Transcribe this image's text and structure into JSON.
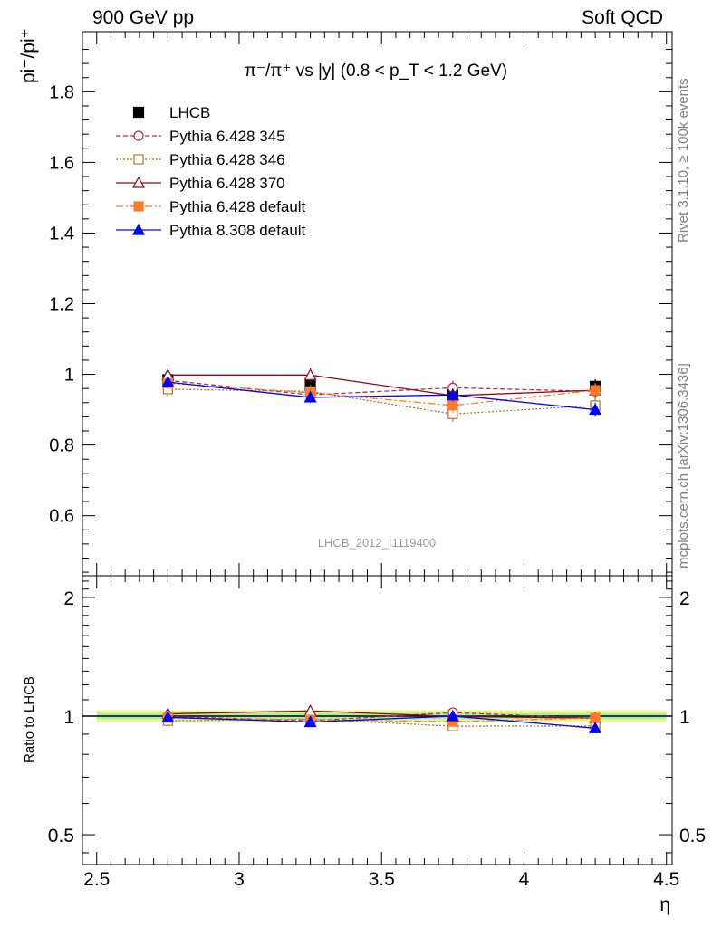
{
  "header": {
    "left": "900 GeV pp",
    "right": "Soft QCD"
  },
  "side_labels": {
    "rivet": "Rivet 3.1.10, ≥ 100k events",
    "source": "mcplots.cern.ch [arXiv:1306.3436]"
  },
  "chart_data": [
    {
      "type": "line",
      "title": "π⁻/π⁺ vs |y| (0.8 < p_T < 1.2 GeV)",
      "ylabel": "pi⁻/pi⁺",
      "xlabel": "η",
      "watermark": "LHCB_2012_I1119400",
      "xlim": [
        2.45,
        4.52
      ],
      "ylim": [
        0.43,
        1.97
      ],
      "x_ticks": [
        {
          "v": 2.5,
          "label": "2.5"
        },
        {
          "v": 3.0,
          "label": "3"
        },
        {
          "v": 3.5,
          "label": "3.5"
        },
        {
          "v": 4.0,
          "label": "4"
        },
        {
          "v": 4.5,
          "label": "4.5"
        }
      ],
      "y_ticks": [
        {
          "v": 0.6,
          "label": "0.6"
        },
        {
          "v": 0.8,
          "label": "0.8"
        },
        {
          "v": 1.0,
          "label": "1"
        },
        {
          "v": 1.2,
          "label": "1.2"
        },
        {
          "v": 1.4,
          "label": "1.4"
        },
        {
          "v": 1.6,
          "label": "1.6"
        },
        {
          "v": 1.8,
          "label": "1.8"
        }
      ],
      "x": [
        2.75,
        3.25,
        3.75,
        4.25
      ],
      "legend": "top-left",
      "series": [
        {
          "name": "LHCB",
          "color": "#000000",
          "marker": "filled-square",
          "dash": "none",
          "line": false,
          "values": [
            0.985,
            0.968,
            0.942,
            0.966
          ],
          "errors": [
            0.02,
            0.02,
            0.02,
            0.02
          ]
        },
        {
          "name": "Pythia 6.428 345",
          "color": "#b03040",
          "marker": "open-circle",
          "dash": "5,3",
          "line": true,
          "values": [
            0.983,
            0.942,
            0.962,
            0.952
          ],
          "errors": [
            0.018,
            0.018,
            0.02,
            0.022
          ]
        },
        {
          "name": "Pythia 6.428 346",
          "color": "#a07828",
          "marker": "open-square",
          "dash": "2,2",
          "line": true,
          "values": [
            0.958,
            0.952,
            0.888,
            0.912
          ],
          "errors": [
            0.02,
            0.018,
            0.022,
            0.022
          ]
        },
        {
          "name": "Pythia 6.428 370",
          "color": "#8b0a14",
          "marker": "open-triangle",
          "dash": "none",
          "line": true,
          "values": [
            0.998,
            0.998,
            0.94,
            0.955
          ],
          "errors": [
            0.02,
            0.02,
            0.02,
            0.02
          ]
        },
        {
          "name": "Pythia 6.428 default",
          "color": "#ff7a2e",
          "marker": "filled-square",
          "dash": "8,3,2,3",
          "line": true,
          "values": [
            0.975,
            0.948,
            0.912,
            0.955
          ],
          "errors": [
            0.018,
            0.018,
            0.02,
            0.02
          ]
        },
        {
          "name": "Pythia 8.308 default",
          "color": "#0000ff",
          "marker": "filled-triangle",
          "dash": "none",
          "line": true,
          "values": [
            0.978,
            0.935,
            0.942,
            0.9
          ],
          "errors": [
            0.015,
            0.015,
            0.018,
            0.02
          ]
        }
      ]
    },
    {
      "type": "line",
      "ylabel": "Ratio to LHCB",
      "xlabel": "η",
      "xlim": [
        2.45,
        4.52
      ],
      "ylim": [
        0.42,
        2.27
      ],
      "log_y": true,
      "y_ticks": [
        {
          "v": 0.5,
          "label": "0.5"
        },
        {
          "v": 1.0,
          "label": "1"
        },
        {
          "v": 2.0,
          "label": "2"
        }
      ],
      "band": {
        "color_outer": "#f2f58c",
        "color_inner": "#a8f0a8",
        "outer": 0.035,
        "inner": 0.018
      },
      "x": [
        2.75,
        3.25,
        3.75,
        4.25
      ],
      "series": [
        {
          "name": "Pythia 6.428 345",
          "values": [
            0.998,
            0.973,
            1.021,
            0.986
          ]
        },
        {
          "name": "Pythia 6.428 346",
          "values": [
            0.973,
            0.983,
            0.943,
            0.944
          ]
        },
        {
          "name": "Pythia 6.428 370",
          "values": [
            1.013,
            1.031,
            0.998,
            0.989
          ]
        },
        {
          "name": "Pythia 6.428 default",
          "values": [
            0.99,
            0.979,
            0.968,
            0.989
          ]
        },
        {
          "name": "Pythia 8.308 default",
          "values": [
            0.993,
            0.966,
            1.0,
            0.932
          ]
        }
      ]
    }
  ]
}
